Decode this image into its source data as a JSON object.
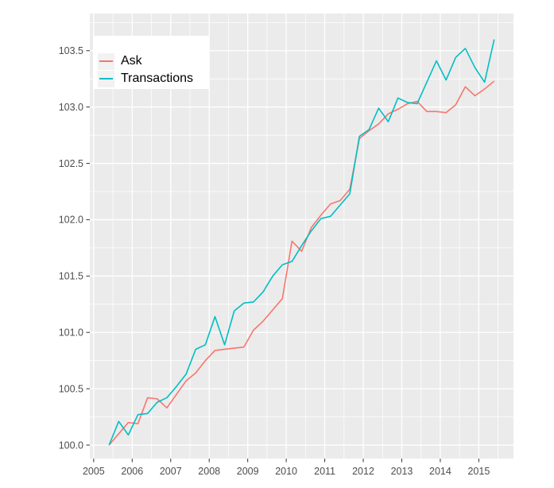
{
  "chart_data": {
    "type": "line",
    "title": "",
    "xlabel": "",
    "ylabel": "",
    "grid": true,
    "panel_background": "#EBEBEB",
    "gridline_color": "#FFFFFF",
    "axis_text_color": "#4D4D4D",
    "tick_color": "#333333",
    "legend_position": "top-left-inside",
    "legend_key_background": "#F2F2F2",
    "xlim": [
      2004.9,
      2015.9
    ],
    "ylim": [
      99.88,
      103.83
    ],
    "x_ticks": {
      "values": [
        2005,
        2006,
        2007,
        2008,
        2009,
        2010,
        2011,
        2012,
        2013,
        2014,
        2015
      ],
      "labels": [
        "2005",
        "2006",
        "2007",
        "2008",
        "2009",
        "2010",
        "2011",
        "2012",
        "2013",
        "2014",
        "2015"
      ]
    },
    "y_ticks": {
      "values": [
        100.0,
        100.5,
        101.0,
        101.5,
        102.0,
        102.5,
        103.0,
        103.5
      ],
      "labels": [
        "100.0",
        "100.5",
        "101.0",
        "101.5",
        "102.0",
        "102.5",
        "103.0",
        "103.5"
      ]
    },
    "x_minor": [
      2005.5,
      2006.5,
      2007.5,
      2008.5,
      2009.5,
      2010.5,
      2011.5,
      2012.5,
      2013.5,
      2014.5,
      2015.5
    ],
    "y_minor": [
      100.25,
      100.75,
      101.25,
      101.75,
      102.25,
      102.75,
      103.25,
      103.75
    ],
    "x": [
      2005.4,
      2005.65,
      2005.9,
      2006.15,
      2006.4,
      2006.65,
      2006.9,
      2007.15,
      2007.4,
      2007.65,
      2007.9,
      2008.15,
      2008.4,
      2008.65,
      2008.9,
      2009.15,
      2009.4,
      2009.65,
      2009.9,
      2010.15,
      2010.4,
      2010.65,
      2010.9,
      2011.15,
      2011.4,
      2011.65,
      2011.9,
      2012.15,
      2012.4,
      2012.65,
      2012.9,
      2013.15,
      2013.4,
      2013.65,
      2013.9,
      2014.15,
      2014.4,
      2014.65,
      2014.9,
      2015.15,
      2015.4
    ],
    "series": [
      {
        "name": "Ask",
        "color": "#F8766D",
        "values": [
          100.0,
          100.1,
          100.2,
          100.19,
          100.42,
          100.41,
          100.33,
          100.45,
          100.57,
          100.64,
          100.75,
          100.84,
          100.85,
          100.86,
          100.87,
          101.02,
          101.1,
          101.2,
          101.3,
          101.81,
          101.72,
          101.93,
          102.04,
          102.14,
          102.17,
          102.27,
          102.72,
          102.79,
          102.85,
          102.94,
          102.98,
          103.03,
          103.05,
          102.96,
          102.96,
          102.95,
          103.02,
          103.18,
          103.1,
          103.16,
          103.23
        ]
      },
      {
        "name": "Transactions",
        "color": "#00BFC4",
        "values": [
          100.0,
          100.21,
          100.09,
          100.27,
          100.28,
          100.38,
          100.42,
          100.52,
          100.63,
          100.85,
          100.89,
          101.14,
          100.89,
          101.19,
          101.26,
          101.27,
          101.36,
          101.5,
          101.6,
          101.63,
          101.77,
          101.9,
          102.01,
          102.03,
          102.13,
          102.23,
          102.74,
          102.8,
          102.99,
          102.87,
          103.08,
          103.04,
          103.03,
          103.22,
          103.41,
          103.24,
          103.44,
          103.52,
          103.35,
          103.22,
          103.6
        ]
      }
    ]
  }
}
